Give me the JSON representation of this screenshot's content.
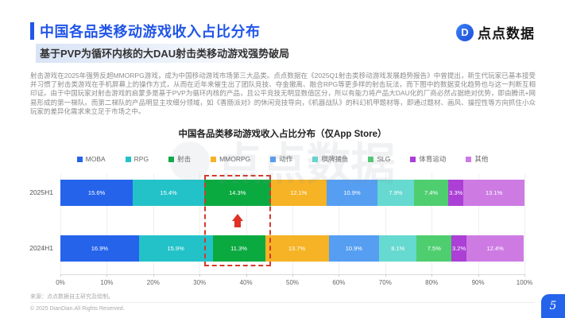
{
  "header": {
    "title": "中国各品类移动游戏收入占比分布",
    "subtitle": "基于PVP为循环内核的大DAU射击类移动游戏强势破局",
    "logo_text": "点点数据",
    "accent_color": "#2256E8"
  },
  "paragraph": "射击游戏在2025年强势反超MMORPG游戏，成为中国移动游戏市场第三大品类。点点数据在《2025Q1射击类移动游戏发展趋势报告》中曾提出，新生代玩家已基本接受并习惯了射击类游戏在手机屏幕上的操作方式，从而在近年来催生出了团队竞技、夺金撤离、融合RPG等更多样的射击玩法，而下图中的数据变化趋势也与这一判断互相印证。由于中国玩家对射击游戏的启蒙多是基于PVP为循环内核的产品，且公平竞技无明显数值区分，所以有能力将产品大DAU化的厂商必然占据绝对优势，即由腾讯+网易形成的第一梯队。而第二梯队的产品明显主攻细分领域，如《香肠派对》的休闲竞技导向，《机器战队》的科幻机甲题材等，即通过题材、画风、操控性等方向抓住小众玩家的差异化需求来立足于市场之中。",
  "chart_data": {
    "type": "bar",
    "stacked": true,
    "horizontal": true,
    "title": "中国各品类移动游戏收入占比分布（仅App Store）",
    "categories": [
      "2025H1",
      "2024H1"
    ],
    "series": [
      {
        "name": "MOBA",
        "color": "#2563EB",
        "values": [
          15.6,
          16.9
        ]
      },
      {
        "name": "RPG",
        "color": "#23C2C9",
        "values": [
          15.4,
          15.9
        ]
      },
      {
        "name": "射击",
        "color": "#0BAA41",
        "values": [
          14.3,
          11.3
        ]
      },
      {
        "name": "MMORPG",
        "color": "#F5B325",
        "values": [
          12.1,
          13.7
        ]
      },
      {
        "name": "动作",
        "color": "#559EF2",
        "values": [
          10.9,
          10.9
        ]
      },
      {
        "name": "棋牌捕鱼",
        "color": "#66D9D0",
        "values": [
          7.9,
          8.1
        ]
      },
      {
        "name": "SLG",
        "color": "#4FCE70",
        "values": [
          7.4,
          7.5
        ]
      },
      {
        "name": "体育运动",
        "color": "#AB3FD6",
        "values": [
          3.3,
          3.2
        ]
      },
      {
        "name": "其他",
        "color": "#CD7BE3",
        "values": [
          13.1,
          12.4
        ]
      }
    ],
    "x_ticks": [
      "0%",
      "10%",
      "20%",
      "30%",
      "40%",
      "50%",
      "60%",
      "70%",
      "80%",
      "90%",
      "100%"
    ],
    "xlim": [
      0,
      100
    ],
    "grid": true,
    "legend_position": "top",
    "highlight": {
      "series": "射击",
      "style": "red-dashed-box",
      "arrow": "up",
      "color": "#D5392B"
    }
  },
  "watermark": "点点数据",
  "footer": {
    "source_note": "来源：点点数据自主研究及绘制。",
    "copyright": "© 2025 DianDian.All Rights Reserved.",
    "page_number": "5"
  }
}
